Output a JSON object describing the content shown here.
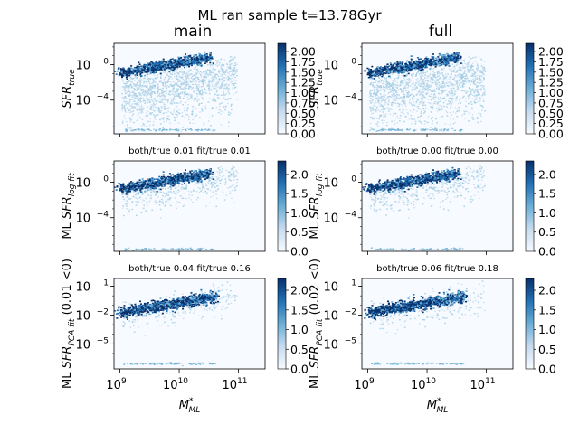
{
  "suptitle": "ML ran sample t=13.78Gyr",
  "column_titles": [
    "main",
    "full"
  ],
  "colormap": {
    "low": "#f7fbff",
    "mid": "#6baed6",
    "high": "#08306b"
  },
  "chart_data": [
    {
      "type": "heatmap",
      "column": "main",
      "row": 0,
      "title": "",
      "ylabel": "SFR_true",
      "ylabel_display": "SFR",
      "ylabel_sub": "true",
      "ylabel_prefix": "",
      "x_ticks": [],
      "x_tick_labels": false,
      "y_ticks": [
        {
          "exp": "0",
          "log": 0
        },
        {
          "exp": "−4",
          "log": -4
        }
      ],
      "ylim_log": [
        -7.8,
        2.4
      ],
      "xlim_log": [
        8.9,
        11.45
      ],
      "colorbar": {
        "ticks": [
          "0.00",
          "0.25",
          "0.50",
          "0.75",
          "1.00",
          "1.25",
          "1.50",
          "1.75",
          "2.00"
        ],
        "values": [
          0,
          0.25,
          0.5,
          0.75,
          1,
          1.25,
          1.5,
          1.75,
          2
        ],
        "range": [
          0,
          2.2
        ]
      },
      "ridge": {
        "x_log": [
          9.0,
          10.5
        ],
        "y_log": [
          -0.9,
          0.9
        ]
      },
      "scatter_extent": "wide",
      "floor_y_log": -7.3
    },
    {
      "type": "heatmap",
      "column": "full",
      "row": 0,
      "title": "",
      "ylabel": "SFR_true",
      "ylabel_display": "SFR",
      "ylabel_sub": "true",
      "ylabel_prefix": "",
      "x_ticks": [],
      "x_tick_labels": false,
      "y_ticks": [
        {
          "exp": "0",
          "log": 0
        },
        {
          "exp": "−4",
          "log": -4
        }
      ],
      "ylim_log": [
        -7.8,
        2.4
      ],
      "xlim_log": [
        8.9,
        11.45
      ],
      "colorbar": {
        "ticks": [
          "0.00",
          "0.25",
          "0.50",
          "0.75",
          "1.00",
          "1.25",
          "1.50",
          "1.75",
          "2.00"
        ],
        "values": [
          0,
          0.25,
          0.5,
          0.75,
          1,
          1.25,
          1.5,
          1.75,
          2
        ],
        "range": [
          0,
          2.2
        ]
      },
      "ridge": {
        "x_log": [
          9.0,
          10.5
        ],
        "y_log": [
          -0.9,
          0.9
        ]
      },
      "scatter_extent": "wide",
      "floor_y_log": -7.3
    },
    {
      "type": "heatmap",
      "column": "main",
      "row": 1,
      "title": "both/true 0.01 fit/true 0.01",
      "ylabel": "ML SFR_log fit",
      "ylabel_display": "SFR",
      "ylabel_sub": "log fit",
      "ylabel_prefix": "ML ",
      "x_ticks": [],
      "x_tick_labels": false,
      "y_ticks": [
        {
          "exp": "0",
          "log": 0
        },
        {
          "exp": "−4",
          "log": -4
        }
      ],
      "ylim_log": [
        -7.8,
        2.4
      ],
      "xlim_log": [
        8.9,
        11.45
      ],
      "colorbar": {
        "ticks": [
          "0.0",
          "0.5",
          "1.0",
          "1.5",
          "2.0"
        ],
        "values": [
          0,
          0.5,
          1,
          1.5,
          2
        ],
        "range": [
          0,
          2.35
        ]
      },
      "ridge": {
        "x_log": [
          9.0,
          10.5
        ],
        "y_log": [
          -0.7,
          1.1
        ]
      },
      "scatter_extent": "medium",
      "floor_y_log": -7.5
    },
    {
      "type": "heatmap",
      "column": "full",
      "row": 1,
      "title": "both/true 0.00 fit/true 0.00",
      "ylabel": "ML SFR_log fit",
      "ylabel_display": "SFR",
      "ylabel_sub": "log fit",
      "ylabel_prefix": "ML ",
      "x_ticks": [],
      "x_tick_labels": false,
      "y_ticks": [
        {
          "exp": "0",
          "log": 0
        },
        {
          "exp": "−4",
          "log": -4
        }
      ],
      "ylim_log": [
        -7.8,
        2.4
      ],
      "xlim_log": [
        8.9,
        11.45
      ],
      "colorbar": {
        "ticks": [
          "0.0",
          "0.5",
          "1.0",
          "1.5",
          "2.0"
        ],
        "values": [
          0,
          0.5,
          1,
          1.5,
          2
        ],
        "range": [
          0,
          2.35
        ]
      },
      "ridge": {
        "x_log": [
          9.0,
          10.5
        ],
        "y_log": [
          -0.7,
          1.1
        ]
      },
      "scatter_extent": "medium",
      "floor_y_log": -7.5
    },
    {
      "type": "heatmap",
      "column": "main",
      "row": 2,
      "title": "both/true 0.04 fit/true 0.16",
      "ylabel": "ML SFR_PCA fit (0.01 <0)",
      "ylabel_display": "SFR",
      "ylabel_sub": "PCA fit",
      "ylabel_prefix": "ML ",
      "ylabel_suffix": " (0.01 <0)",
      "x_ticks": [
        {
          "exp": "9",
          "log": 9
        },
        {
          "exp": "10",
          "log": 10
        },
        {
          "exp": "11",
          "log": 11
        }
      ],
      "x_tick_labels": true,
      "xlabel": "M*_ML",
      "y_ticks": [
        {
          "exp": "1",
          "log": 1
        },
        {
          "exp": "−2",
          "log": -2
        },
        {
          "exp": "−5",
          "log": -5
        }
      ],
      "ylim_log": [
        -7.6,
        1.8
      ],
      "xlim_log": [
        8.9,
        11.45
      ],
      "colorbar": {
        "ticks": [
          "0.0",
          "0.5",
          "1.0",
          "1.5",
          "2.0"
        ],
        "values": [
          0,
          0.5,
          1,
          1.5,
          2
        ],
        "range": [
          0,
          2.3
        ]
      },
      "ridge": {
        "x_log": [
          9.0,
          10.6
        ],
        "y_log": [
          -1.7,
          0.0
        ]
      },
      "scatter_extent": "narrow",
      "floor_y_log": -7.0
    },
    {
      "type": "heatmap",
      "column": "full",
      "row": 2,
      "title": "both/true 0.06 fit/true 0.18",
      "ylabel": "ML SFR_PCA fit (0.02 <0)",
      "ylabel_display": "SFR",
      "ylabel_sub": "PCA fit",
      "ylabel_prefix": "ML ",
      "ylabel_suffix": " (0.02 <0)",
      "x_ticks": [
        {
          "exp": "9",
          "log": 9
        },
        {
          "exp": "10",
          "log": 10
        },
        {
          "exp": "11",
          "log": 11
        }
      ],
      "x_tick_labels": true,
      "xlabel": "M*_ML",
      "y_ticks": [
        {
          "exp": "1",
          "log": 1
        },
        {
          "exp": "−2",
          "log": -2
        },
        {
          "exp": "−5",
          "log": -5
        }
      ],
      "ylim_log": [
        -7.6,
        1.8
      ],
      "xlim_log": [
        8.9,
        11.45
      ],
      "colorbar": {
        "ticks": [
          "0.0",
          "0.5",
          "1.0",
          "1.5",
          "2.0"
        ],
        "values": [
          0,
          0.5,
          1,
          1.5,
          2
        ],
        "range": [
          0,
          2.3
        ]
      },
      "ridge": {
        "x_log": [
          9.0,
          10.6
        ],
        "y_log": [
          -1.7,
          0.0
        ]
      },
      "scatter_extent": "narrow",
      "floor_y_log": -7.0
    }
  ]
}
